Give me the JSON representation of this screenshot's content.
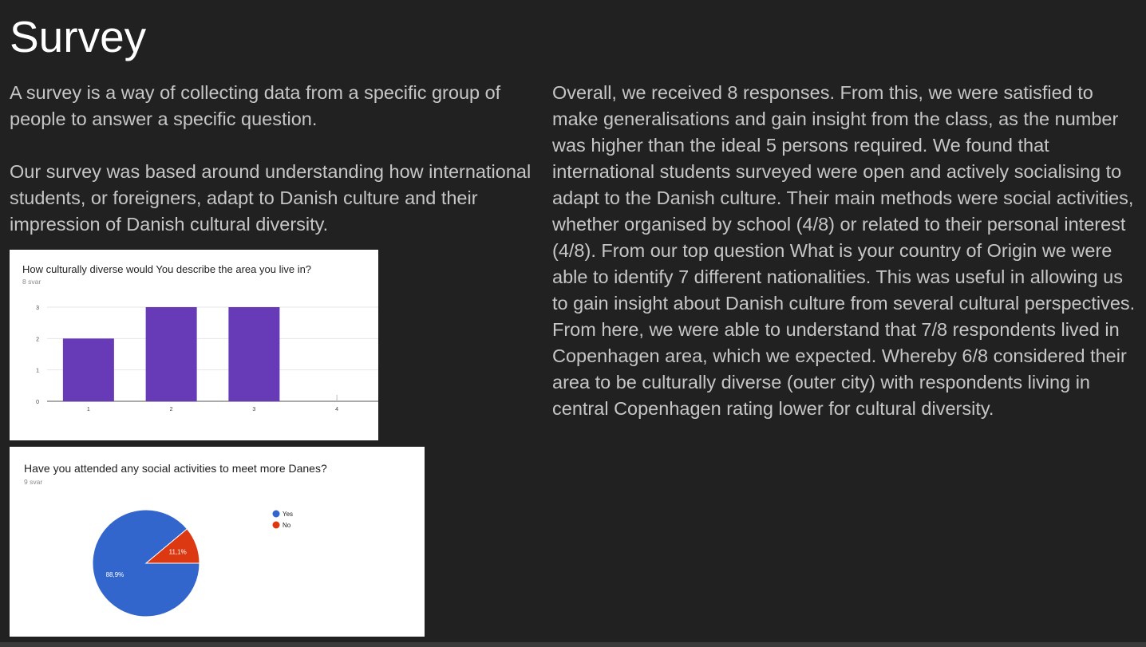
{
  "slide": {
    "title": "Survey",
    "left": {
      "p1": "A survey is a way of collecting data from a specific group of people to answer a specific question.",
      "p2": "Our survey was based around understanding how international students, or foreigners, adapt to Danish culture and their impression of Danish cultural diversity."
    },
    "right": {
      "p1": "Overall, we received 8 responses. From this, we were satisfied to make generalisations and gain insight from the class, as the number was higher than the ideal 5 persons required. We found that international students surveyed were open and actively socialising to adapt to the Danish culture. Their main methods were social activities, whether organised by school (4/8) or related to their personal interest (4/8). From our top question What is your country of Origin we were able to identify 7 different nationalities. This was useful in allowing us to gain insight about Danish culture from several cultural perspectives. From here, we were able to understand that 7/8 respondents lived in Copenhagen area, which we expected. Whereby 6/8 considered their area to be culturally diverse (outer city) with respondents living in central Copenhagen rating lower for cultural diversity."
    }
  },
  "colors": {
    "background": "#212121",
    "bar": "#673ab7",
    "pie_yes": "#3366cc",
    "pie_no": "#dc3912"
  },
  "chart_data": [
    {
      "type": "bar",
      "title": "How culturally diverse would You describe the area you live in?",
      "subtitle": "8 svar",
      "categories": [
        "1",
        "2",
        "3",
        "4"
      ],
      "values": [
        2,
        3,
        3,
        0
      ],
      "yticks": [
        "0",
        "1",
        "2",
        "3"
      ],
      "ylim": [
        0,
        3
      ],
      "grid": true
    },
    {
      "type": "pie",
      "title": "Have you attended any social activities to meet more Danes?",
      "subtitle": "9 svar",
      "labels": [
        "Yes",
        "No"
      ],
      "values": [
        88.9,
        11.1
      ],
      "value_labels": [
        "88,9%",
        "11,1%"
      ],
      "legend": "right"
    }
  ]
}
